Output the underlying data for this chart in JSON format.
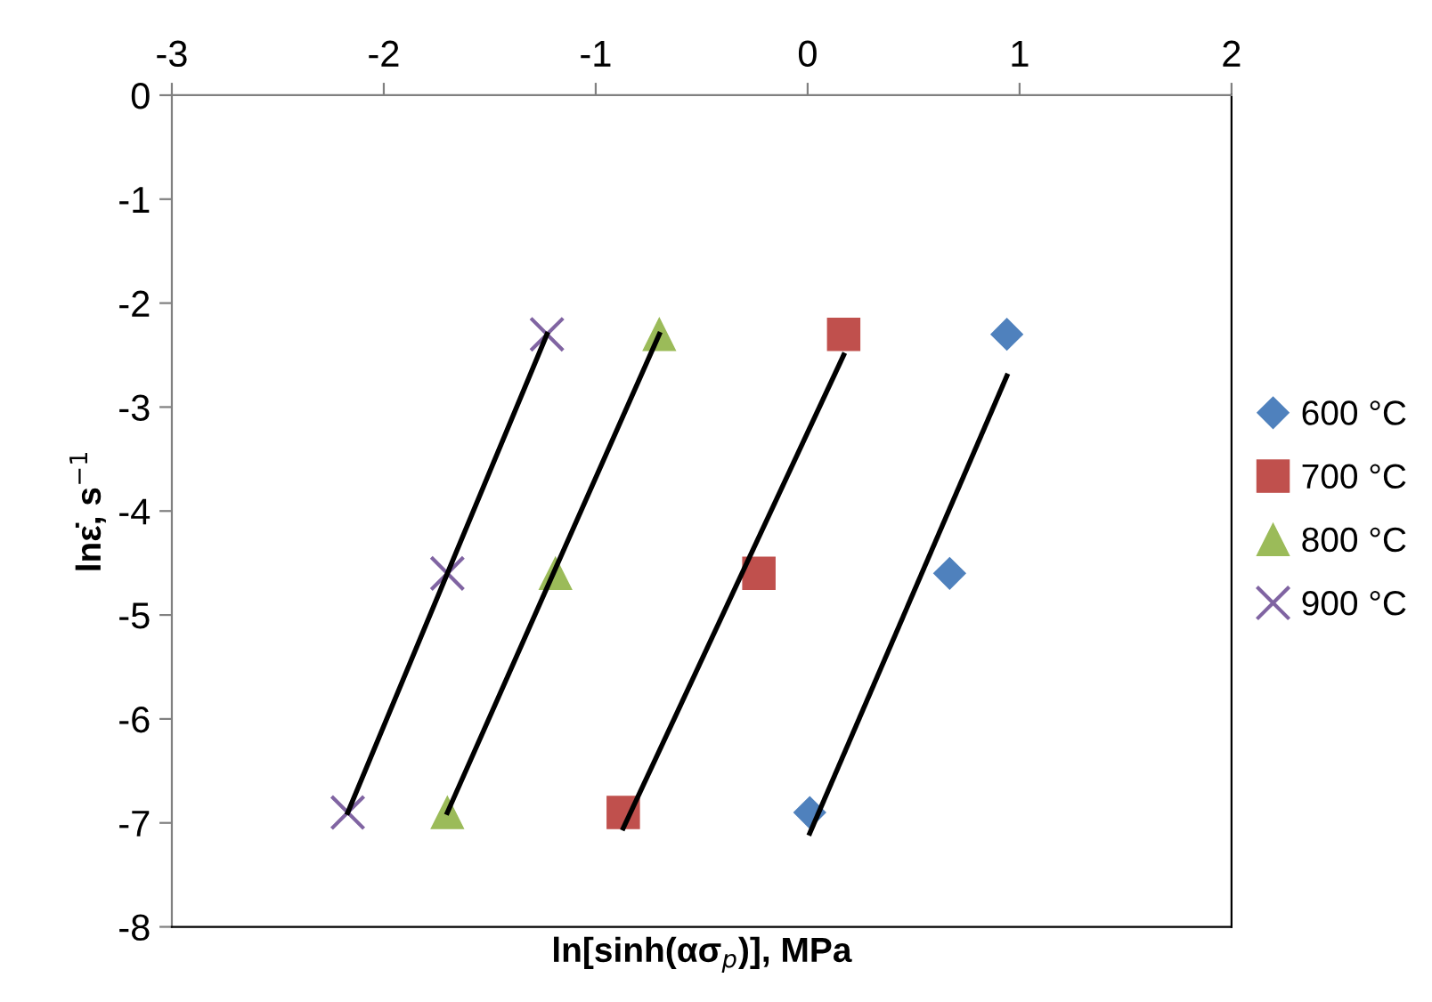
{
  "chart_data": {
    "type": "scatter",
    "xlabel": "ln[sinh(ασ$_{p}$)], MPa",
    "ylabel": "lnε̇, s$^{−1}$",
    "xlim": [
      -3,
      2
    ],
    "xticks": [
      -3,
      -2,
      -1,
      0,
      1,
      2
    ],
    "ylim": [
      -8,
      0
    ],
    "yticks": [
      -8,
      -7,
      -6,
      -5,
      -4,
      -3,
      -2,
      -1,
      0
    ],
    "grid": false,
    "legend": "right",
    "series": [
      {
        "name": "600 °C",
        "marker": "diamond",
        "color": "#4f81bd",
        "x": [
          0.94,
          0.67,
          0.01
        ],
        "values": [
          -2.3,
          -4.6,
          -6.9
        ]
      },
      {
        "name": "700 °C",
        "marker": "square",
        "color": "#c0504d",
        "x": [
          0.17,
          -0.23,
          -0.87
        ],
        "values": [
          -2.3,
          -4.6,
          -6.9
        ]
      },
      {
        "name": "800 °C",
        "marker": "triangle",
        "color": "#9bbb59",
        "x": [
          -0.7,
          -1.19,
          -1.7
        ],
        "values": [
          -2.3,
          -4.6,
          -6.9
        ]
      },
      {
        "name": "900 °C",
        "marker": "cross",
        "color": "#8064a2",
        "x": [
          -1.23,
          -1.7,
          -2.17
        ],
        "values": [
          -2.3,
          -4.6,
          -6.9
        ]
      },
      {
        "type": "line",
        "marker": "none",
        "color": "#000000",
        "x": [
          0.01,
          0.94
        ],
        "values": [
          -7.1,
          -2.7
        ]
      },
      {
        "type": "line",
        "marker": "none",
        "color": "#000000",
        "x": [
          -0.87,
          0.17
        ],
        "values": [
          -7.05,
          -2.5
        ]
      },
      {
        "type": "line",
        "marker": "none",
        "color": "#000000",
        "x": [
          -1.7,
          -0.7
        ],
        "values": [
          -6.9,
          -2.3
        ]
      },
      {
        "type": "line",
        "marker": "none",
        "color": "#000000",
        "x": [
          -2.17,
          -1.23
        ],
        "values": [
          -6.9,
          -2.3
        ]
      }
    ]
  }
}
